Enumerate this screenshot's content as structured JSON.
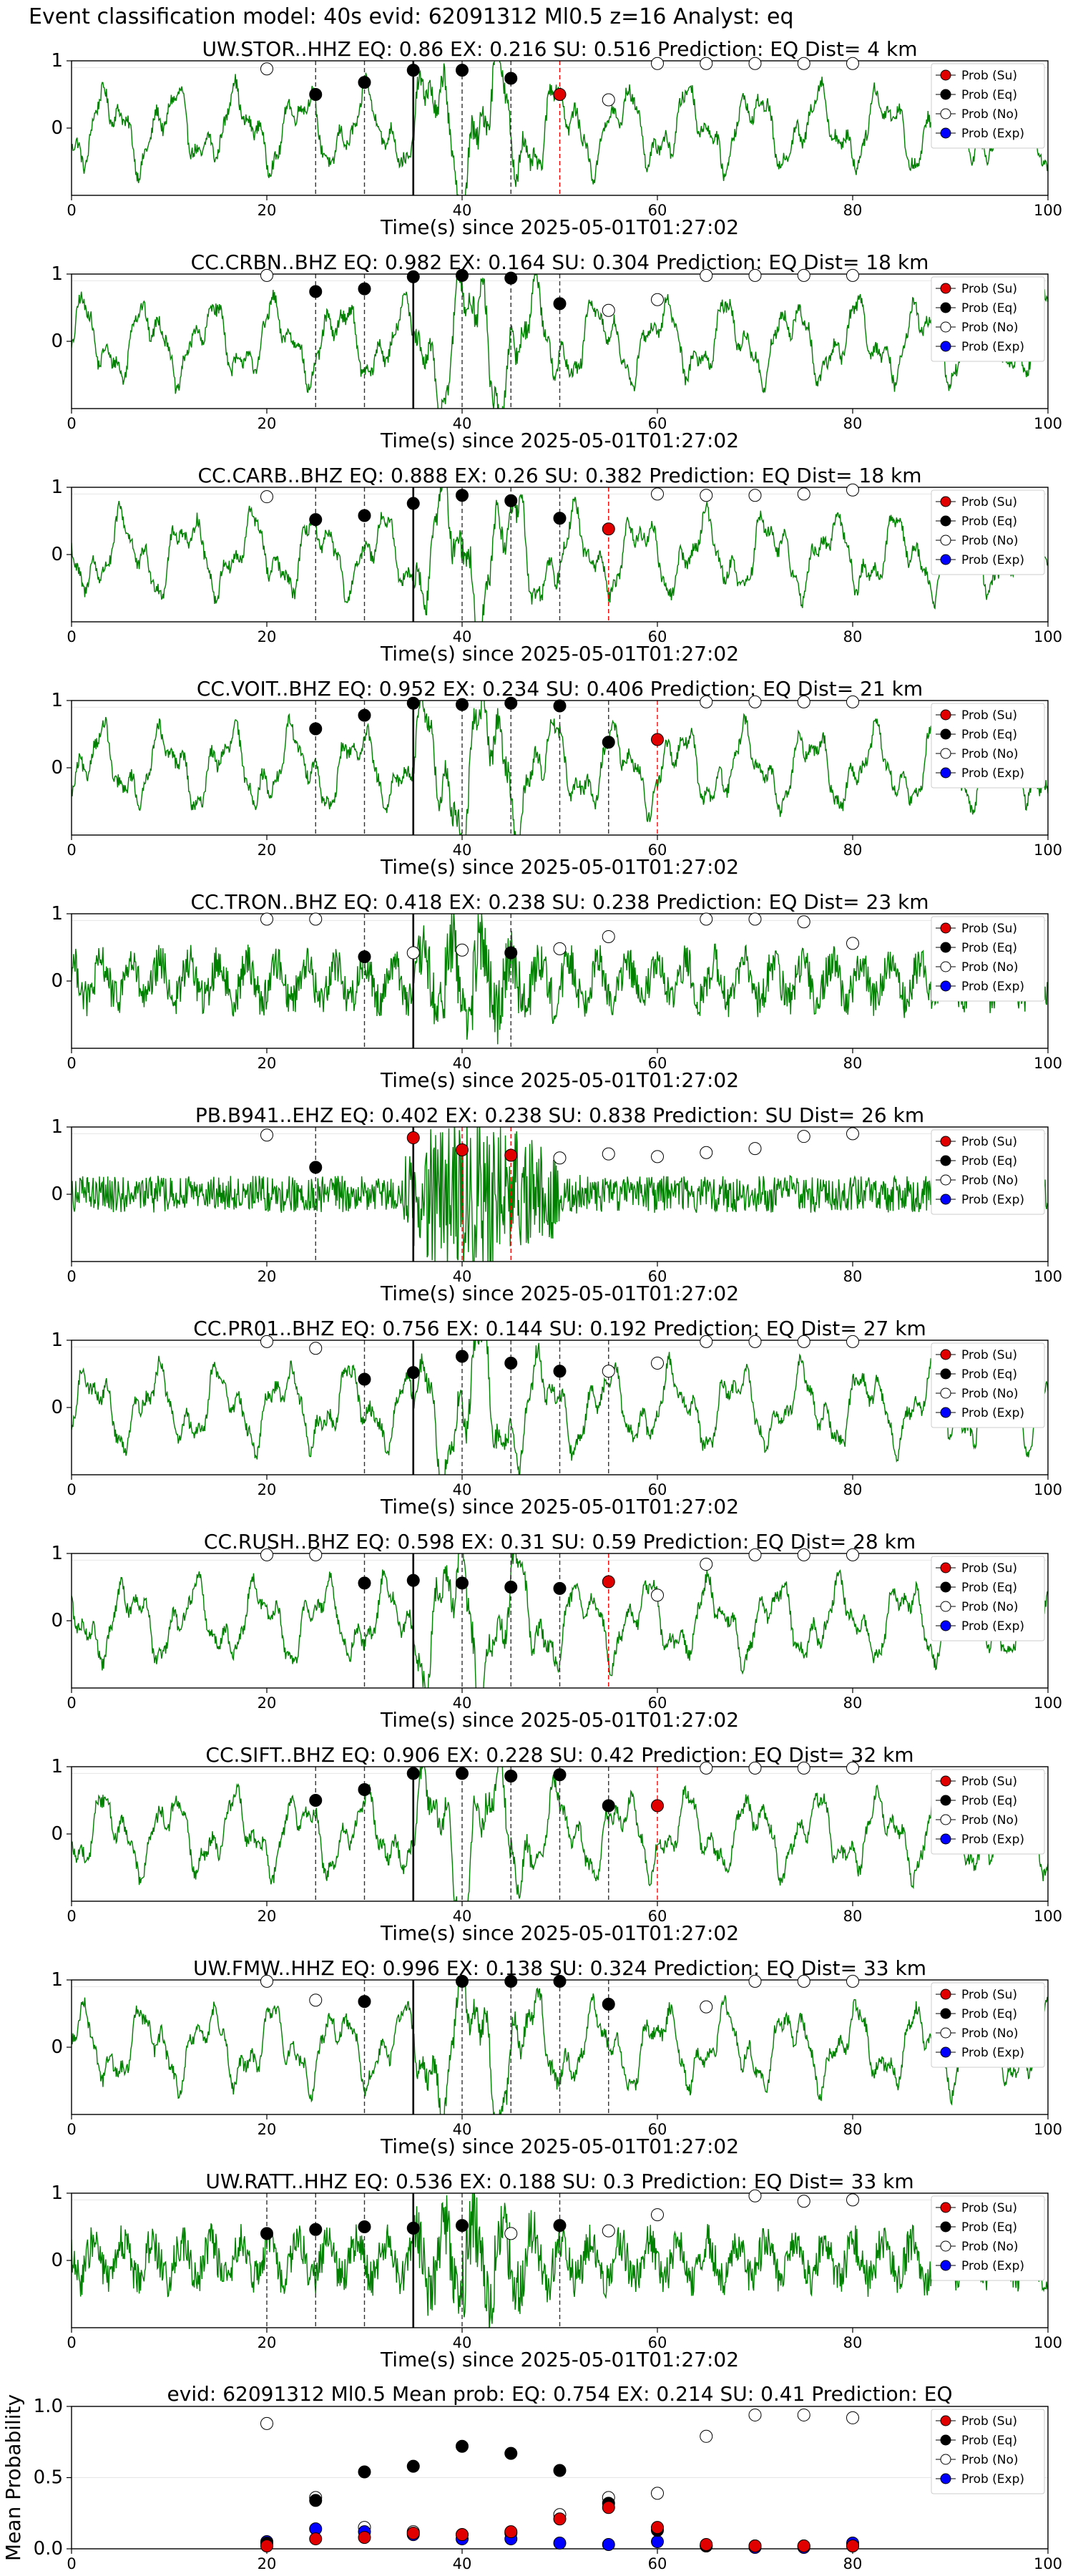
{
  "figure": {
    "title": "Event classification model: 40s evid: 62091312 Ml0.5 z=16 Analyst: eq",
    "xlabel": "Time(s) since 2025-05-01T01:27:02"
  },
  "legend": [
    "Prob (Su)",
    "Prob (Eq)",
    "Prob (No)",
    "Prob (Exp)"
  ],
  "colors": {
    "trace": "#008000",
    "su": "#e00000",
    "eq": "#000000",
    "no": "#ffffff",
    "exp": "#0000ff",
    "pick": "#ff0000"
  },
  "chart_data": [
    {
      "type": "line",
      "title": "UW.STOR..HHZ   EQ: 0.86  EX: 0.216  SU: 0.516   Prediction: EQ    Dist= 4 km",
      "xlim": [
        0,
        100
      ],
      "ylim": [
        -1,
        1
      ],
      "xticks": [
        0,
        20,
        40,
        60,
        80,
        100
      ],
      "yticks": [
        0,
        1
      ],
      "p_pick": 35,
      "s_pick": 50,
      "dashed": [
        25,
        30,
        40,
        45
      ],
      "prob_eq": [
        [
          25,
          0.5
        ],
        [
          30,
          0.68
        ],
        [
          35,
          0.86
        ],
        [
          40,
          0.86
        ],
        [
          45,
          0.74
        ]
      ],
      "prob_su": [
        [
          50,
          0.5
        ]
      ],
      "prob_no": [
        [
          20,
          0.88
        ],
        [
          55,
          0.42
        ],
        [
          60,
          0.96
        ],
        [
          65,
          0.96
        ],
        [
          70,
          0.96
        ],
        [
          75,
          0.96
        ],
        [
          80,
          0.96
        ]
      ],
      "prob_exp": []
    },
    {
      "type": "line",
      "title": "CC.CRBN..BHZ   EQ: 0.982  EX: 0.164  SU: 0.304   Prediction: EQ    Dist= 18 km",
      "xlim": [
        0,
        100
      ],
      "ylim": [
        -1,
        1
      ],
      "xticks": [
        0,
        20,
        40,
        60,
        80,
        100
      ],
      "yticks": [
        0,
        1
      ],
      "p_pick": 35,
      "s_pick": null,
      "dashed": [
        25,
        30,
        40,
        45,
        50
      ],
      "prob_eq": [
        [
          25,
          0.74
        ],
        [
          30,
          0.78
        ],
        [
          35,
          0.96
        ],
        [
          40,
          0.98
        ],
        [
          45,
          0.94
        ],
        [
          50,
          0.56
        ]
      ],
      "prob_su": [],
      "prob_no": [
        [
          20,
          0.98
        ],
        [
          55,
          0.46
        ],
        [
          60,
          0.62
        ],
        [
          65,
          0.98
        ],
        [
          70,
          0.98
        ],
        [
          75,
          0.98
        ],
        [
          80,
          0.98
        ]
      ],
      "prob_exp": []
    },
    {
      "type": "line",
      "title": "CC.CARB..BHZ   EQ: 0.888  EX: 0.26  SU: 0.382   Prediction: EQ    Dist= 18 km",
      "xlim": [
        0,
        100
      ],
      "ylim": [
        -1,
        1
      ],
      "xticks": [
        0,
        20,
        40,
        60,
        80,
        100
      ],
      "yticks": [
        0,
        1
      ],
      "p_pick": 35,
      "s_pick": 55,
      "dashed": [
        25,
        30,
        40,
        45,
        50
      ],
      "prob_eq": [
        [
          25,
          0.52
        ],
        [
          30,
          0.58
        ],
        [
          35,
          0.76
        ],
        [
          40,
          0.88
        ],
        [
          45,
          0.8
        ],
        [
          50,
          0.54
        ]
      ],
      "prob_su": [
        [
          55,
          0.38
        ]
      ],
      "prob_no": [
        [
          20,
          0.86
        ],
        [
          60,
          0.9
        ],
        [
          65,
          0.88
        ],
        [
          70,
          0.88
        ],
        [
          75,
          0.9
        ],
        [
          80,
          0.96
        ]
      ],
      "prob_exp": []
    },
    {
      "type": "line",
      "title": "CC.VOIT..BHZ   EQ: 0.952  EX: 0.234  SU: 0.406   Prediction: EQ    Dist= 21 km",
      "xlim": [
        0,
        100
      ],
      "ylim": [
        -1,
        1
      ],
      "xticks": [
        0,
        20,
        40,
        60,
        80,
        100
      ],
      "yticks": [
        0,
        1
      ],
      "p_pick": 35,
      "s_pick": 60,
      "dashed": [
        25,
        30,
        40,
        45,
        50,
        55
      ],
      "prob_eq": [
        [
          25,
          0.58
        ],
        [
          30,
          0.78
        ],
        [
          35,
          0.96
        ],
        [
          40,
          0.94
        ],
        [
          45,
          0.96
        ],
        [
          50,
          0.92
        ],
        [
          55,
          0.38
        ]
      ],
      "prob_su": [
        [
          60,
          0.42
        ]
      ],
      "prob_no": [
        [
          65,
          0.98
        ],
        [
          70,
          0.98
        ],
        [
          75,
          0.98
        ],
        [
          80,
          0.98
        ]
      ],
      "prob_exp": []
    },
    {
      "type": "line",
      "title": "CC.TRON..BHZ   EQ: 0.418  EX: 0.238  SU: 0.238   Prediction: EQ    Dist= 23 km",
      "xlim": [
        0,
        100
      ],
      "ylim": [
        -1,
        1
      ],
      "xticks": [
        0,
        20,
        40,
        60,
        80,
        100
      ],
      "yticks": [
        0,
        1
      ],
      "p_pick": 35,
      "s_pick": null,
      "dashed": [
        30,
        45
      ],
      "prob_eq": [
        [
          30,
          0.36
        ],
        [
          45,
          0.42
        ]
      ],
      "prob_su": [],
      "prob_no": [
        [
          20,
          0.92
        ],
        [
          25,
          0.92
        ],
        [
          35,
          0.42
        ],
        [
          40,
          0.46
        ],
        [
          50,
          0.48
        ],
        [
          55,
          0.66
        ],
        [
          65,
          0.92
        ],
        [
          70,
          0.92
        ],
        [
          75,
          0.88
        ],
        [
          80,
          0.56
        ]
      ],
      "prob_exp": []
    },
    {
      "type": "line",
      "title": "PB.B941..EHZ   EQ: 0.402  EX: 0.238  SU: 0.838   Prediction: SU    Dist= 26 km",
      "xlim": [
        0,
        100
      ],
      "ylim": [
        -1,
        1
      ],
      "xticks": [
        0,
        20,
        40,
        60,
        80,
        100
      ],
      "yticks": [
        0,
        1
      ],
      "p_pick": 35,
      "s_pick": null,
      "dashed": [
        25
      ],
      "red_dashed": [
        40,
        45
      ],
      "prob_eq": [
        [
          25,
          0.4
        ]
      ],
      "prob_su": [
        [
          35,
          0.84
        ],
        [
          40,
          0.66
        ],
        [
          45,
          0.58
        ]
      ],
      "prob_no": [
        [
          20,
          0.88
        ],
        [
          50,
          0.54
        ],
        [
          55,
          0.6
        ],
        [
          60,
          0.56
        ],
        [
          65,
          0.62
        ],
        [
          70,
          0.68
        ],
        [
          75,
          0.86
        ],
        [
          80,
          0.9
        ]
      ],
      "prob_exp": []
    },
    {
      "type": "line",
      "title": "CC.PR01..BHZ   EQ: 0.756  EX: 0.144  SU: 0.192   Prediction: EQ    Dist= 27 km",
      "xlim": [
        0,
        100
      ],
      "ylim": [
        -1,
        1
      ],
      "xticks": [
        0,
        20,
        40,
        60,
        80,
        100
      ],
      "yticks": [
        0,
        1
      ],
      "p_pick": 35,
      "s_pick": null,
      "dashed": [
        30,
        40,
        45,
        50,
        55
      ],
      "prob_eq": [
        [
          30,
          0.42
        ],
        [
          35,
          0.52
        ],
        [
          40,
          0.76
        ],
        [
          45,
          0.66
        ],
        [
          50,
          0.54
        ]
      ],
      "prob_su": [],
      "prob_no": [
        [
          20,
          0.98
        ],
        [
          25,
          0.88
        ],
        [
          55,
          0.54
        ],
        [
          60,
          0.66
        ],
        [
          65,
          0.98
        ],
        [
          70,
          0.98
        ],
        [
          75,
          0.98
        ],
        [
          80,
          0.98
        ]
      ],
      "prob_exp": []
    },
    {
      "type": "line",
      "title": "CC.RUSH..BHZ   EQ: 0.598  EX: 0.31  SU: 0.59   Prediction: EQ    Dist= 28 km",
      "xlim": [
        0,
        100
      ],
      "ylim": [
        -1,
        1
      ],
      "xticks": [
        0,
        20,
        40,
        60,
        80,
        100
      ],
      "yticks": [
        0,
        1
      ],
      "p_pick": 35,
      "s_pick": 55,
      "dashed": [
        30,
        40,
        45,
        50
      ],
      "prob_eq": [
        [
          30,
          0.56
        ],
        [
          35,
          0.6
        ],
        [
          40,
          0.56
        ],
        [
          45,
          0.5
        ],
        [
          50,
          0.48
        ]
      ],
      "prob_su": [
        [
          55,
          0.58
        ]
      ],
      "prob_no": [
        [
          20,
          0.98
        ],
        [
          25,
          0.98
        ],
        [
          60,
          0.38
        ],
        [
          65,
          0.84
        ],
        [
          70,
          0.98
        ],
        [
          75,
          0.98
        ],
        [
          80,
          0.98
        ]
      ],
      "prob_exp": []
    },
    {
      "type": "line",
      "title": "CC.SIFT..BHZ   EQ: 0.906  EX: 0.228  SU: 0.42   Prediction: EQ    Dist= 32 km",
      "xlim": [
        0,
        100
      ],
      "ylim": [
        -1,
        1
      ],
      "xticks": [
        0,
        20,
        40,
        60,
        80,
        100
      ],
      "yticks": [
        0,
        1
      ],
      "p_pick": 35,
      "s_pick": 60,
      "dashed": [
        25,
        30,
        40,
        45,
        50,
        55
      ],
      "prob_eq": [
        [
          25,
          0.5
        ],
        [
          30,
          0.66
        ],
        [
          35,
          0.9
        ],
        [
          40,
          0.9
        ],
        [
          45,
          0.86
        ],
        [
          50,
          0.88
        ],
        [
          55,
          0.42
        ]
      ],
      "prob_su": [
        [
          60,
          0.42
        ]
      ],
      "prob_no": [
        [
          65,
          0.98
        ],
        [
          70,
          0.98
        ],
        [
          75,
          0.98
        ],
        [
          80,
          0.98
        ]
      ],
      "prob_exp": []
    },
    {
      "type": "line",
      "title": "UW.FMW..HHZ   EQ: 0.996  EX: 0.138  SU: 0.324   Prediction: EQ    Dist= 33 km",
      "xlim": [
        0,
        100
      ],
      "ylim": [
        -1,
        1
      ],
      "xticks": [
        0,
        20,
        40,
        60,
        80,
        100
      ],
      "yticks": [
        0,
        1
      ],
      "p_pick": 35,
      "s_pick": null,
      "dashed": [
        30,
        40,
        45,
        50,
        55
      ],
      "prob_eq": [
        [
          30,
          0.68
        ],
        [
          40,
          0.98
        ],
        [
          45,
          0.98
        ],
        [
          50,
          0.98
        ],
        [
          55,
          0.64
        ]
      ],
      "prob_su": [],
      "prob_no": [
        [
          20,
          0.98
        ],
        [
          25,
          0.7
        ],
        [
          65,
          0.6
        ],
        [
          70,
          0.98
        ],
        [
          75,
          0.98
        ],
        [
          80,
          0.98
        ]
      ],
      "prob_exp": []
    },
    {
      "type": "line",
      "title": "UW.RATT..HHZ   EQ: 0.536  EX: 0.188  SU: 0.3   Prediction: EQ    Dist= 33 km",
      "xlim": [
        0,
        100
      ],
      "ylim": [
        -1,
        1
      ],
      "xticks": [
        0,
        20,
        40,
        60,
        80,
        100
      ],
      "yticks": [
        0,
        1
      ],
      "p_pick": 35,
      "s_pick": null,
      "dashed": [
        20,
        25,
        30,
        40,
        50
      ],
      "prob_eq": [
        [
          20,
          0.4
        ],
        [
          25,
          0.46
        ],
        [
          30,
          0.5
        ],
        [
          35,
          0.48
        ],
        [
          40,
          0.52
        ],
        [
          50,
          0.52
        ]
      ],
      "prob_su": [],
      "prob_no": [
        [
          45,
          0.4
        ],
        [
          55,
          0.44
        ],
        [
          60,
          0.68
        ],
        [
          70,
          0.96
        ],
        [
          75,
          0.88
        ],
        [
          80,
          0.9
        ]
      ],
      "prob_exp": []
    },
    {
      "type": "scatter",
      "title": "evid: 62091312  Ml0.5   Mean prob:   EQ: 0.754  EX: 0.214  SU: 0.41   Prediction: EQ",
      "ylabel": "Mean Probability",
      "xlim": [
        0,
        100
      ],
      "ylim": [
        0,
        1
      ],
      "xticks": [
        0,
        20,
        40,
        60,
        80,
        100
      ],
      "yticks": [
        0,
        0.5,
        1
      ],
      "ytick_labels": [
        "0.0",
        "0.5",
        "1.0"
      ],
      "prob_eq": [
        [
          20,
          0.04
        ],
        [
          25,
          0.34
        ],
        [
          30,
          0.54
        ],
        [
          35,
          0.58
        ],
        [
          40,
          0.72
        ],
        [
          45,
          0.67
        ],
        [
          50,
          0.55
        ],
        [
          55,
          0.32
        ],
        [
          60,
          0.13
        ],
        [
          65,
          0.02
        ],
        [
          70,
          0.02
        ],
        [
          75,
          0.02
        ],
        [
          80,
          0.02
        ]
      ],
      "prob_su": [
        [
          20,
          0.02
        ],
        [
          25,
          0.07
        ],
        [
          30,
          0.08
        ],
        [
          35,
          0.11
        ],
        [
          40,
          0.1
        ],
        [
          45,
          0.12
        ],
        [
          50,
          0.21
        ],
        [
          55,
          0.29
        ],
        [
          60,
          0.15
        ],
        [
          65,
          0.03
        ],
        [
          70,
          0.02
        ],
        [
          75,
          0.02
        ],
        [
          80,
          0.02
        ]
      ],
      "prob_no": [
        [
          20,
          0.88
        ],
        [
          25,
          0.36
        ],
        [
          30,
          0.15
        ],
        [
          35,
          0.12
        ],
        [
          40,
          0.1
        ],
        [
          45,
          0.11
        ],
        [
          50,
          0.24
        ],
        [
          55,
          0.36
        ],
        [
          60,
          0.39
        ],
        [
          65,
          0.79
        ],
        [
          70,
          0.94
        ],
        [
          75,
          0.94
        ],
        [
          80,
          0.92
        ]
      ],
      "prob_exp": [
        [
          20,
          0.05
        ],
        [
          25,
          0.14
        ],
        [
          30,
          0.12
        ],
        [
          35,
          0.1
        ],
        [
          40,
          0.07
        ],
        [
          45,
          0.07
        ],
        [
          50,
          0.04
        ],
        [
          55,
          0.03
        ],
        [
          60,
          0.05
        ],
        [
          65,
          0.02
        ],
        [
          70,
          0.01
        ],
        [
          75,
          0.01
        ],
        [
          80,
          0.04
        ]
      ]
    }
  ]
}
